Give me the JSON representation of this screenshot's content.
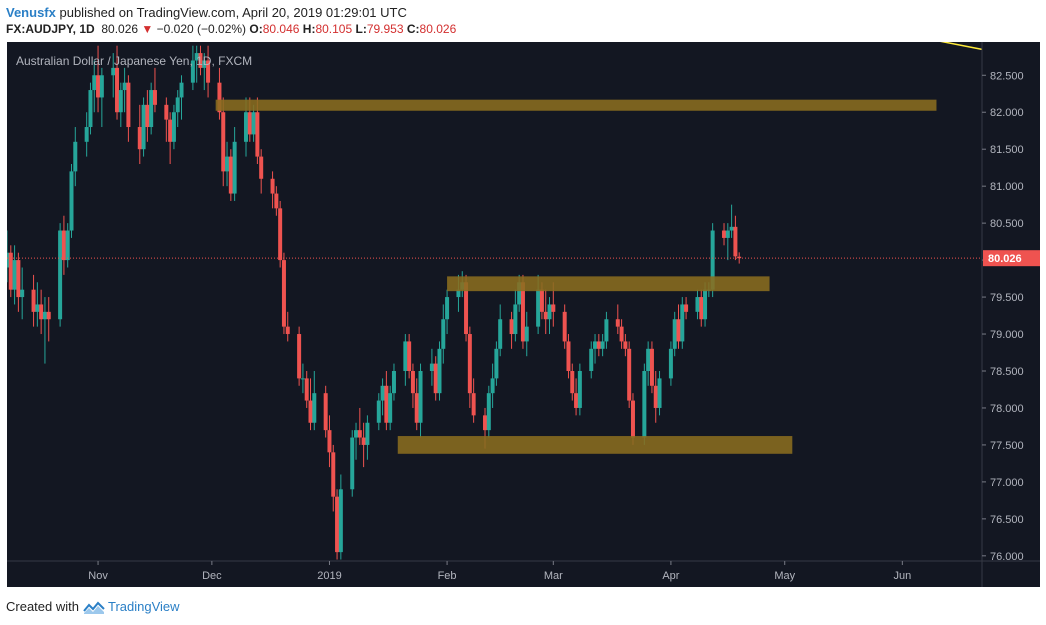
{
  "header": {
    "author": "Venusfx",
    "published_text": "published on TradingView.com, April 20, 2019 01:29:01 UTC",
    "symbol": "FX:AUDJPY, 1D",
    "last": "80.026",
    "change_arrow": "▼",
    "change": "−0.020 (−0.02%)",
    "o_label": "O:",
    "o_value": "80.046",
    "h_label": "H:",
    "h_value": "80.105",
    "l_label": "L:",
    "l_value": "79.953",
    "c_label": "C:",
    "c_value": "80.026"
  },
  "footer": {
    "created_with": "Created with",
    "brand": "TradingView"
  },
  "chart_data": {
    "type": "candlestick",
    "title": "Australian Dollar / Japanese Yen, 1D, FXCM",
    "ylim": [
      75.93,
      82.95
    ],
    "y_ticks": [
      "82.500",
      "82.000",
      "81.500",
      "81.000",
      "80.500",
      "80.000",
      "79.500",
      "79.000",
      "78.500",
      "78.000",
      "77.500",
      "77.000",
      "76.500",
      "76.000"
    ],
    "y_tick_values": [
      82.5,
      82.0,
      81.5,
      81.0,
      80.5,
      80.0,
      79.5,
      79.0,
      78.5,
      78.0,
      77.5,
      77.0,
      76.5,
      76.0
    ],
    "x_ticks": [
      "Nov",
      "Dec",
      "2019",
      "Feb",
      "Mar",
      "Apr",
      "May",
      "Jun"
    ],
    "x_tick_dates": [
      "2018-11-01",
      "2018-12-01",
      "2019-01-01",
      "2019-02-01",
      "2019-03-01",
      "2019-04-01",
      "2019-05-01",
      "2019-06-01"
    ],
    "x_range": [
      "2018-10-08",
      "2019-06-22"
    ],
    "last_price": 80.026,
    "last_price_label": "80.026",
    "up_color": "#26a69a",
    "down_color": "#ef5350",
    "zone_color": "#8a6d1f",
    "background": "#131722",
    "zones": [
      {
        "start": "2018-12-02",
        "end": "2019-06-10",
        "low": 82.02,
        "high": 82.17
      },
      {
        "start": "2019-02-01",
        "end": "2019-04-27",
        "low": 79.58,
        "high": 79.78
      },
      {
        "start": "2019-01-19",
        "end": "2019-05-03",
        "low": 77.38,
        "high": 77.62
      }
    ],
    "trendline": {
      "start_date": "2019-06-10",
      "start_price": 82.97,
      "end_date": "2019-06-22",
      "end_price": 82.85
    },
    "candles": [
      {
        "d": "2018-10-08",
        "o": 79.9,
        "h": 80.4,
        "l": 79.7,
        "c": 80.1
      },
      {
        "d": "2018-10-09",
        "o": 80.1,
        "h": 80.2,
        "l": 79.5,
        "c": 79.6
      },
      {
        "d": "2018-10-10",
        "o": 79.6,
        "h": 80.2,
        "l": 79.4,
        "c": 80.0
      },
      {
        "d": "2018-10-11",
        "o": 80.0,
        "h": 80.1,
        "l": 79.3,
        "c": 79.5
      },
      {
        "d": "2018-10-12",
        "o": 79.5,
        "h": 79.9,
        "l": 79.2,
        "c": 79.6
      },
      {
        "d": "2018-10-15",
        "o": 79.6,
        "h": 79.8,
        "l": 79.1,
        "c": 79.3
      },
      {
        "d": "2018-10-16",
        "o": 79.3,
        "h": 79.7,
        "l": 79.1,
        "c": 79.4
      },
      {
        "d": "2018-10-17",
        "o": 79.4,
        "h": 79.6,
        "l": 79.0,
        "c": 79.2
      },
      {
        "d": "2018-10-18",
        "o": 79.2,
        "h": 79.5,
        "l": 78.6,
        "c": 79.3
      },
      {
        "d": "2018-10-19",
        "o": 79.3,
        "h": 79.5,
        "l": 78.9,
        "c": 79.2
      },
      {
        "d": "2018-10-22",
        "o": 79.2,
        "h": 80.5,
        "l": 79.1,
        "c": 80.4
      },
      {
        "d": "2018-10-23",
        "o": 80.4,
        "h": 80.6,
        "l": 79.8,
        "c": 80.0
      },
      {
        "d": "2018-10-24",
        "o": 80.0,
        "h": 80.5,
        "l": 79.9,
        "c": 80.4
      },
      {
        "d": "2018-10-25",
        "o": 80.4,
        "h": 81.3,
        "l": 80.3,
        "c": 81.2
      },
      {
        "d": "2018-10-26",
        "o": 81.2,
        "h": 81.8,
        "l": 81.0,
        "c": 81.6
      },
      {
        "d": "2018-10-29",
        "o": 81.6,
        "h": 82.0,
        "l": 81.4,
        "c": 81.8
      },
      {
        "d": "2018-10-30",
        "o": 81.8,
        "h": 82.4,
        "l": 81.7,
        "c": 82.3
      },
      {
        "d": "2018-10-31",
        "o": 82.3,
        "h": 82.7,
        "l": 82.0,
        "c": 82.5
      },
      {
        "d": "2018-11-01",
        "o": 82.5,
        "h": 82.9,
        "l": 82.0,
        "c": 82.2
      },
      {
        "d": "2018-11-02",
        "o": 82.2,
        "h": 82.6,
        "l": 81.8,
        "c": 82.5
      },
      {
        "d": "2018-11-05",
        "o": 82.5,
        "h": 82.8,
        "l": 82.2,
        "c": 82.6
      },
      {
        "d": "2018-11-06",
        "o": 82.6,
        "h": 82.9,
        "l": 81.9,
        "c": 82.0
      },
      {
        "d": "2018-11-07",
        "o": 82.0,
        "h": 82.4,
        "l": 81.8,
        "c": 82.3
      },
      {
        "d": "2018-11-08",
        "o": 82.3,
        "h": 82.6,
        "l": 82.0,
        "c": 82.4
      },
      {
        "d": "2018-11-09",
        "o": 82.4,
        "h": 82.5,
        "l": 81.6,
        "c": 81.8
      },
      {
        "d": "2018-11-12",
        "o": 81.8,
        "h": 82.1,
        "l": 81.3,
        "c": 81.5
      },
      {
        "d": "2018-11-13",
        "o": 81.5,
        "h": 82.2,
        "l": 81.4,
        "c": 82.1
      },
      {
        "d": "2018-11-14",
        "o": 82.1,
        "h": 82.3,
        "l": 81.6,
        "c": 81.8
      },
      {
        "d": "2018-11-15",
        "o": 81.8,
        "h": 82.4,
        "l": 81.7,
        "c": 82.3
      },
      {
        "d": "2018-11-16",
        "o": 82.3,
        "h": 82.6,
        "l": 82.0,
        "c": 82.1
      },
      {
        "d": "2018-11-19",
        "o": 82.1,
        "h": 82.2,
        "l": 81.6,
        "c": 81.9
      },
      {
        "d": "2018-11-20",
        "o": 81.9,
        "h": 82.0,
        "l": 81.3,
        "c": 81.6
      },
      {
        "d": "2018-11-21",
        "o": 81.6,
        "h": 82.1,
        "l": 81.5,
        "c": 82.0
      },
      {
        "d": "2018-11-22",
        "o": 82.0,
        "h": 82.3,
        "l": 81.8,
        "c": 82.2
      },
      {
        "d": "2018-11-23",
        "o": 82.2,
        "h": 82.5,
        "l": 81.9,
        "c": 82.4
      },
      {
        "d": "2018-11-26",
        "o": 82.4,
        "h": 82.9,
        "l": 82.3,
        "c": 82.7
      },
      {
        "d": "2018-11-27",
        "o": 82.7,
        "h": 82.9,
        "l": 82.4,
        "c": 82.8
      },
      {
        "d": "2018-11-28",
        "o": 82.8,
        "h": 82.9,
        "l": 82.5,
        "c": 82.6
      },
      {
        "d": "2018-11-29",
        "o": 82.6,
        "h": 82.8,
        "l": 82.3,
        "c": 82.7
      },
      {
        "d": "2018-11-30",
        "o": 82.7,
        "h": 82.9,
        "l": 82.2,
        "c": 82.4
      },
      {
        "d": "2018-12-03",
        "o": 82.4,
        "h": 82.6,
        "l": 81.9,
        "c": 82.0
      },
      {
        "d": "2018-12-04",
        "o": 82.0,
        "h": 82.2,
        "l": 81.0,
        "c": 81.2
      },
      {
        "d": "2018-12-05",
        "o": 81.2,
        "h": 81.6,
        "l": 81.0,
        "c": 81.4
      },
      {
        "d": "2018-12-06",
        "o": 81.4,
        "h": 81.5,
        "l": 80.8,
        "c": 80.9
      },
      {
        "d": "2018-12-07",
        "o": 80.9,
        "h": 81.8,
        "l": 80.8,
        "c": 81.6
      },
      {
        "d": "2018-12-10",
        "o": 81.6,
        "h": 82.2,
        "l": 81.4,
        "c": 82.0
      },
      {
        "d": "2018-12-11",
        "o": 82.0,
        "h": 82.2,
        "l": 81.6,
        "c": 81.7
      },
      {
        "d": "2018-12-12",
        "o": 81.7,
        "h": 82.1,
        "l": 81.6,
        "c": 82.0
      },
      {
        "d": "2018-12-13",
        "o": 82.0,
        "h": 82.2,
        "l": 81.3,
        "c": 81.4
      },
      {
        "d": "2018-12-14",
        "o": 81.4,
        "h": 81.5,
        "l": 80.9,
        "c": 81.1
      },
      {
        "d": "2018-12-17",
        "o": 81.1,
        "h": 81.2,
        "l": 80.7,
        "c": 80.9
      },
      {
        "d": "2018-12-18",
        "o": 80.9,
        "h": 81.0,
        "l": 80.6,
        "c": 80.7
      },
      {
        "d": "2018-12-19",
        "o": 80.7,
        "h": 80.8,
        "l": 79.9,
        "c": 80.0
      },
      {
        "d": "2018-12-20",
        "o": 80.0,
        "h": 80.1,
        "l": 79.0,
        "c": 79.1
      },
      {
        "d": "2018-12-21",
        "o": 79.1,
        "h": 79.3,
        "l": 78.9,
        "c": 79.0
      },
      {
        "d": "2018-12-24",
        "o": 79.0,
        "h": 79.1,
        "l": 78.3,
        "c": 78.4
      },
      {
        "d": "2018-12-25",
        "o": 78.4,
        "h": 78.6,
        "l": 78.2,
        "c": 78.4
      },
      {
        "d": "2018-12-26",
        "o": 78.4,
        "h": 78.5,
        "l": 78.0,
        "c": 78.1
      },
      {
        "d": "2018-12-27",
        "o": 78.1,
        "h": 78.4,
        "l": 77.7,
        "c": 77.8
      },
      {
        "d": "2018-12-28",
        "o": 77.8,
        "h": 78.5,
        "l": 77.7,
        "c": 78.2
      },
      {
        "d": "2018-12-31",
        "o": 78.2,
        "h": 78.3,
        "l": 77.6,
        "c": 77.7
      },
      {
        "d": "2019-01-01",
        "o": 77.7,
        "h": 77.9,
        "l": 77.2,
        "c": 77.4
      },
      {
        "d": "2019-01-02",
        "o": 77.4,
        "h": 77.5,
        "l": 76.6,
        "c": 76.8
      },
      {
        "d": "2019-01-03",
        "o": 76.8,
        "h": 76.9,
        "l": 75.95,
        "c": 76.05
      },
      {
        "d": "2019-01-04",
        "o": 76.05,
        "h": 77.1,
        "l": 75.95,
        "c": 76.9
      },
      {
        "d": "2019-01-07",
        "o": 76.9,
        "h": 77.7,
        "l": 76.8,
        "c": 77.6
      },
      {
        "d": "2019-01-08",
        "o": 77.6,
        "h": 77.8,
        "l": 77.3,
        "c": 77.7
      },
      {
        "d": "2019-01-09",
        "o": 77.7,
        "h": 78.0,
        "l": 77.5,
        "c": 77.6
      },
      {
        "d": "2019-01-10",
        "o": 77.6,
        "h": 77.8,
        "l": 77.2,
        "c": 77.5
      },
      {
        "d": "2019-01-11",
        "o": 77.5,
        "h": 77.9,
        "l": 77.3,
        "c": 77.8
      },
      {
        "d": "2019-01-14",
        "o": 77.8,
        "h": 78.2,
        "l": 77.7,
        "c": 78.1
      },
      {
        "d": "2019-01-15",
        "o": 78.1,
        "h": 78.4,
        "l": 77.9,
        "c": 78.3
      },
      {
        "d": "2019-01-16",
        "o": 78.3,
        "h": 78.5,
        "l": 77.7,
        "c": 77.8
      },
      {
        "d": "2019-01-17",
        "o": 77.8,
        "h": 78.3,
        "l": 77.7,
        "c": 78.2
      },
      {
        "d": "2019-01-18",
        "o": 78.2,
        "h": 78.6,
        "l": 78.1,
        "c": 78.5
      },
      {
        "d": "2019-01-21",
        "o": 78.5,
        "h": 79.0,
        "l": 78.3,
        "c": 78.9
      },
      {
        "d": "2019-01-22",
        "o": 78.9,
        "h": 79.0,
        "l": 78.4,
        "c": 78.5
      },
      {
        "d": "2019-01-23",
        "o": 78.5,
        "h": 78.6,
        "l": 78.0,
        "c": 78.2
      },
      {
        "d": "2019-01-24",
        "o": 78.2,
        "h": 78.4,
        "l": 77.7,
        "c": 77.8
      },
      {
        "d": "2019-01-25",
        "o": 77.8,
        "h": 78.6,
        "l": 77.6,
        "c": 78.5
      },
      {
        "d": "2019-01-28",
        "o": 78.5,
        "h": 78.8,
        "l": 78.3,
        "c": 78.6
      },
      {
        "d": "2019-01-29",
        "o": 78.6,
        "h": 78.7,
        "l": 78.1,
        "c": 78.2
      },
      {
        "d": "2019-01-30",
        "o": 78.2,
        "h": 78.9,
        "l": 78.1,
        "c": 78.8
      },
      {
        "d": "2019-01-31",
        "o": 78.8,
        "h": 79.4,
        "l": 78.6,
        "c": 79.2
      },
      {
        "d": "2019-02-01",
        "o": 79.2,
        "h": 79.6,
        "l": 79.0,
        "c": 79.5
      },
      {
        "d": "2019-02-04",
        "o": 79.5,
        "h": 79.8,
        "l": 79.3,
        "c": 79.6
      },
      {
        "d": "2019-02-05",
        "o": 79.6,
        "h": 79.85,
        "l": 79.5,
        "c": 79.7
      },
      {
        "d": "2019-02-06",
        "o": 79.7,
        "h": 79.8,
        "l": 78.9,
        "c": 79.0
      },
      {
        "d": "2019-02-07",
        "o": 79.0,
        "h": 79.1,
        "l": 78.0,
        "c": 78.2
      },
      {
        "d": "2019-02-08",
        "o": 78.2,
        "h": 78.4,
        "l": 77.8,
        "c": 77.9
      },
      {
        "d": "2019-02-11",
        "o": 77.9,
        "h": 78.0,
        "l": 77.45,
        "c": 77.7
      },
      {
        "d": "2019-02-12",
        "o": 77.7,
        "h": 78.3,
        "l": 77.6,
        "c": 78.2
      },
      {
        "d": "2019-02-13",
        "o": 78.2,
        "h": 78.6,
        "l": 78.0,
        "c": 78.4
      },
      {
        "d": "2019-02-14",
        "o": 78.4,
        "h": 78.9,
        "l": 78.3,
        "c": 78.8
      },
      {
        "d": "2019-02-15",
        "o": 78.8,
        "h": 79.4,
        "l": 78.7,
        "c": 79.2
      },
      {
        "d": "2019-02-18",
        "o": 79.2,
        "h": 79.3,
        "l": 78.8,
        "c": 79.0
      },
      {
        "d": "2019-02-19",
        "o": 79.0,
        "h": 79.6,
        "l": 78.9,
        "c": 79.4
      },
      {
        "d": "2019-02-20",
        "o": 79.4,
        "h": 79.8,
        "l": 79.3,
        "c": 79.7
      },
      {
        "d": "2019-02-21",
        "o": 79.7,
        "h": 79.8,
        "l": 78.8,
        "c": 78.9
      },
      {
        "d": "2019-02-22",
        "o": 78.9,
        "h": 79.3,
        "l": 78.7,
        "c": 79.1
      },
      {
        "d": "2019-02-25",
        "o": 79.1,
        "h": 79.8,
        "l": 79.0,
        "c": 79.6
      },
      {
        "d": "2019-02-26",
        "o": 79.6,
        "h": 79.7,
        "l": 79.2,
        "c": 79.3
      },
      {
        "d": "2019-02-27",
        "o": 79.3,
        "h": 79.6,
        "l": 79.0,
        "c": 79.2
      },
      {
        "d": "2019-02-28",
        "o": 79.2,
        "h": 79.5,
        "l": 79.0,
        "c": 79.4
      },
      {
        "d": "2019-03-01",
        "o": 79.4,
        "h": 79.7,
        "l": 79.1,
        "c": 79.3
      },
      {
        "d": "2019-03-04",
        "o": 79.3,
        "h": 79.4,
        "l": 78.8,
        "c": 78.9
      },
      {
        "d": "2019-03-05",
        "o": 78.9,
        "h": 79.0,
        "l": 78.4,
        "c": 78.5
      },
      {
        "d": "2019-03-06",
        "o": 78.5,
        "h": 78.6,
        "l": 78.1,
        "c": 78.2
      },
      {
        "d": "2019-03-07",
        "o": 78.2,
        "h": 78.4,
        "l": 77.9,
        "c": 78.0
      },
      {
        "d": "2019-03-08",
        "o": 78.0,
        "h": 78.6,
        "l": 77.9,
        "c": 78.5
      },
      {
        "d": "2019-03-11",
        "o": 78.5,
        "h": 78.9,
        "l": 78.4,
        "c": 78.8
      },
      {
        "d": "2019-03-12",
        "o": 78.8,
        "h": 79.0,
        "l": 78.6,
        "c": 78.9
      },
      {
        "d": "2019-03-13",
        "o": 78.9,
        "h": 79.0,
        "l": 78.7,
        "c": 78.8
      },
      {
        "d": "2019-03-14",
        "o": 78.8,
        "h": 79.0,
        "l": 78.7,
        "c": 78.9
      },
      {
        "d": "2019-03-15",
        "o": 78.9,
        "h": 79.3,
        "l": 78.8,
        "c": 79.2
      },
      {
        "d": "2019-03-18",
        "o": 79.2,
        "h": 79.4,
        "l": 79.0,
        "c": 79.1
      },
      {
        "d": "2019-03-19",
        "o": 79.1,
        "h": 79.2,
        "l": 78.8,
        "c": 78.9
      },
      {
        "d": "2019-03-20",
        "o": 78.9,
        "h": 79.0,
        "l": 78.7,
        "c": 78.8
      },
      {
        "d": "2019-03-21",
        "o": 78.8,
        "h": 78.9,
        "l": 78.0,
        "c": 78.1
      },
      {
        "d": "2019-03-22",
        "o": 78.1,
        "h": 78.2,
        "l": 77.5,
        "c": 77.6
      },
      {
        "d": "2019-03-25",
        "o": 77.6,
        "h": 78.6,
        "l": 77.5,
        "c": 78.5
      },
      {
        "d": "2019-03-26",
        "o": 78.5,
        "h": 78.9,
        "l": 78.3,
        "c": 78.8
      },
      {
        "d": "2019-03-27",
        "o": 78.8,
        "h": 78.9,
        "l": 78.2,
        "c": 78.3
      },
      {
        "d": "2019-03-28",
        "o": 78.3,
        "h": 78.5,
        "l": 77.8,
        "c": 78.0
      },
      {
        "d": "2019-03-29",
        "o": 78.0,
        "h": 78.5,
        "l": 77.9,
        "c": 78.4
      },
      {
        "d": "2019-04-01",
        "o": 78.4,
        "h": 78.9,
        "l": 78.3,
        "c": 78.8
      },
      {
        "d": "2019-04-02",
        "o": 78.8,
        "h": 79.3,
        "l": 78.7,
        "c": 79.2
      },
      {
        "d": "2019-04-03",
        "o": 79.2,
        "h": 79.4,
        "l": 78.8,
        "c": 78.9
      },
      {
        "d": "2019-04-04",
        "o": 78.9,
        "h": 79.5,
        "l": 78.8,
        "c": 79.4
      },
      {
        "d": "2019-04-05",
        "o": 79.4,
        "h": 79.5,
        "l": 79.2,
        "c": 79.3
      },
      {
        "d": "2019-04-08",
        "o": 79.3,
        "h": 79.6,
        "l": 79.2,
        "c": 79.5
      },
      {
        "d": "2019-04-09",
        "o": 79.5,
        "h": 79.6,
        "l": 79.1,
        "c": 79.2
      },
      {
        "d": "2019-04-10",
        "o": 79.2,
        "h": 79.7,
        "l": 79.1,
        "c": 79.6
      },
      {
        "d": "2019-04-11",
        "o": 79.6,
        "h": 79.7,
        "l": 79.5,
        "c": 79.6
      },
      {
        "d": "2019-04-12",
        "o": 79.6,
        "h": 80.5,
        "l": 79.5,
        "c": 80.4
      },
      {
        "d": "2019-04-15",
        "o": 80.4,
        "h": 80.5,
        "l": 80.2,
        "c": 80.3
      },
      {
        "d": "2019-04-16",
        "o": 80.3,
        "h": 80.5,
        "l": 80.0,
        "c": 80.4
      },
      {
        "d": "2019-04-17",
        "o": 80.4,
        "h": 80.75,
        "l": 80.3,
        "c": 80.45
      },
      {
        "d": "2019-04-18",
        "o": 80.45,
        "h": 80.6,
        "l": 80.0,
        "c": 80.05
      },
      {
        "d": "2019-04-19",
        "o": 80.046,
        "h": 80.105,
        "l": 79.953,
        "c": 80.026
      }
    ]
  }
}
